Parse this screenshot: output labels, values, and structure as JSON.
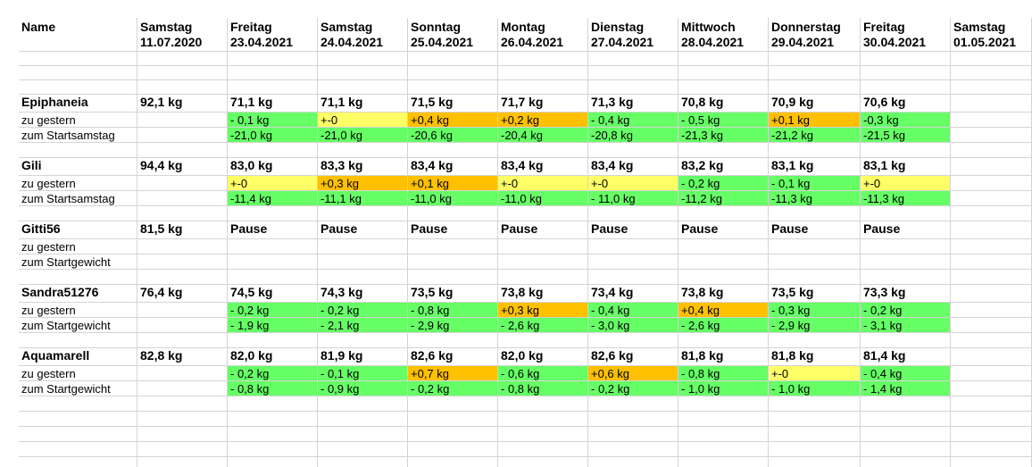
{
  "sheet": {
    "header": {
      "name_label": "Name",
      "dates": [
        {
          "day": "Samstag",
          "date": "11.07.2020"
        },
        {
          "day": "Freitag",
          "date": "23.04.2021"
        },
        {
          "day": "Samstag",
          "date": "24.04.2021"
        },
        {
          "day": "Sonntag",
          "date": "25.04.2021"
        },
        {
          "day": "Montag",
          "date": "26.04.2021"
        },
        {
          "day": "Dienstag",
          "date": "27.04.2021"
        },
        {
          "day": "Mittwoch",
          "date": "28.04.2021"
        },
        {
          "day": "Donnerstag",
          "date": "29.04.2021"
        },
        {
          "day": "Freitag",
          "date": "30.04.2021"
        },
        {
          "day": "Samstag",
          "date": "01.05.2021"
        }
      ]
    },
    "colors": {
      "green": "#66ff66",
      "yellow": "#ffff66",
      "orange": "#ffc000"
    },
    "people": [
      {
        "name": "Epiphaneia",
        "start": "92,1 kg",
        "weights": [
          "71,1 kg",
          "71,1 kg",
          "71,5 kg",
          "71,7 kg",
          "71,3 kg",
          "70,8 kg",
          "70,9 kg",
          "70,6 kg"
        ],
        "diff_label": "zu gestern",
        "diff": [
          {
            "v": "- 0,1 kg",
            "c": "green"
          },
          {
            "v": "+-0",
            "c": "yellow"
          },
          {
            "v": "+0,4 kg",
            "c": "orange"
          },
          {
            "v": "+0,2 kg",
            "c": "orange"
          },
          {
            "v": "- 0,4 kg",
            "c": "green"
          },
          {
            "v": "- 0,5 kg",
            "c": "green"
          },
          {
            "v": "+0,1 kg",
            "c": "orange"
          },
          {
            "v": "-0,3 kg",
            "c": "green"
          }
        ],
        "total_label": "zum Startsamstag",
        "total": [
          {
            "v": "-21,0 kg",
            "c": "green"
          },
          {
            "v": "-21,0 kg",
            "c": "green"
          },
          {
            "v": "-20,6 kg",
            "c": "green"
          },
          {
            "v": "-20,4 kg",
            "c": "green"
          },
          {
            "v": "-20,8 kg",
            "c": "green"
          },
          {
            "v": "-21,3 kg",
            "c": "green"
          },
          {
            "v": "-21,2 kg",
            "c": "green"
          },
          {
            "v": "-21,5 kg",
            "c": "green"
          }
        ]
      },
      {
        "name": "Gili",
        "start": "94,4 kg",
        "weights": [
          "83,0 kg",
          "83,3 kg",
          "83,4 kg",
          "83,4 kg",
          "83,4 kg",
          "83,2 kg",
          "83,1 kg",
          "83,1 kg"
        ],
        "diff_label": "zu gestern",
        "diff": [
          {
            "v": "+-0",
            "c": "yellow"
          },
          {
            "v": "+0,3 kg",
            "c": "orange"
          },
          {
            "v": "+0,1 kg",
            "c": "orange"
          },
          {
            "v": "+-0",
            "c": "yellow"
          },
          {
            "v": "+-0",
            "c": "yellow"
          },
          {
            "v": "- 0,2 kg",
            "c": "green"
          },
          {
            "v": "- 0,1 kg",
            "c": "green"
          },
          {
            "v": "+-0",
            "c": "yellow"
          }
        ],
        "total_label": "zum Startsamstag",
        "total": [
          {
            "v": "-11,4 kg",
            "c": "green"
          },
          {
            "v": "-11,1 kg",
            "c": "green"
          },
          {
            "v": "-11,0 kg",
            "c": "green"
          },
          {
            "v": "-11,0 kg",
            "c": "green"
          },
          {
            "v": "- 11,0 kg",
            "c": "green"
          },
          {
            "v": "-11,2 kg",
            "c": "green"
          },
          {
            "v": "-11,3 kg",
            "c": "green"
          },
          {
            "v": "-11,3 kg",
            "c": "green"
          }
        ]
      },
      {
        "name": "Gitti56",
        "start": "81,5 kg",
        "weights": [
          "Pause",
          "Pause",
          "Pause",
          "Pause",
          "Pause",
          "Pause",
          "Pause",
          "Pause"
        ],
        "diff_label": "zu gestern",
        "diff": [
          {
            "v": "",
            "c": ""
          },
          {
            "v": "",
            "c": ""
          },
          {
            "v": "",
            "c": ""
          },
          {
            "v": "",
            "c": ""
          },
          {
            "v": "",
            "c": ""
          },
          {
            "v": "",
            "c": ""
          },
          {
            "v": "",
            "c": ""
          },
          {
            "v": "",
            "c": ""
          }
        ],
        "total_label": "zum Startgewicht",
        "total": [
          {
            "v": "",
            "c": ""
          },
          {
            "v": "",
            "c": ""
          },
          {
            "v": "",
            "c": ""
          },
          {
            "v": "",
            "c": ""
          },
          {
            "v": "",
            "c": ""
          },
          {
            "v": "",
            "c": ""
          },
          {
            "v": "",
            "c": ""
          },
          {
            "v": "",
            "c": ""
          }
        ]
      },
      {
        "name": "Sandra51276",
        "start": "76,4 kg",
        "weights": [
          "74,5 kg",
          "74,3 kg",
          "73,5 kg",
          "73,8 kg",
          "73,4 kg",
          "73,8 kg",
          "73,5 kg",
          "73,3 kg"
        ],
        "diff_label": "zu gestern",
        "diff": [
          {
            "v": "- 0,2 kg",
            "c": "green"
          },
          {
            "v": "- 0,2 kg",
            "c": "green"
          },
          {
            "v": "- 0,8 kg",
            "c": "green"
          },
          {
            "v": "+0,3 kg",
            "c": "orange"
          },
          {
            "v": "- 0,4 kg",
            "c": "green"
          },
          {
            "v": "+0,4 kg",
            "c": "orange"
          },
          {
            "v": "- 0,3 kg",
            "c": "green"
          },
          {
            "v": "- 0,2 kg",
            "c": "green"
          }
        ],
        "total_label": "zum Startgewicht",
        "total": [
          {
            "v": "- 1,9 kg",
            "c": "green"
          },
          {
            "v": "- 2,1 kg",
            "c": "green"
          },
          {
            "v": "- 2,9 kg",
            "c": "green"
          },
          {
            "v": "- 2,6 kg",
            "c": "green"
          },
          {
            "v": "- 3,0 kg",
            "c": "green"
          },
          {
            "v": "- 2,6 kg",
            "c": "green"
          },
          {
            "v": "- 2,9 kg",
            "c": "green"
          },
          {
            "v": "- 3,1 kg",
            "c": "green"
          }
        ]
      },
      {
        "name": "Aquamarell",
        "start": "82,8 kg",
        "weights": [
          "82,0 kg",
          "81,9 kg",
          "82,6 kg",
          "82,0 kg",
          "82,6 kg",
          "81,8 kg",
          "81,8 kg",
          "81,4 kg"
        ],
        "diff_label": "zu gestern",
        "diff": [
          {
            "v": "- 0,2 kg",
            "c": "green"
          },
          {
            "v": "- 0,1 kg",
            "c": "green"
          },
          {
            "v": "+0,7 kg",
            "c": "orange"
          },
          {
            "v": "- 0,6 kg",
            "c": "green"
          },
          {
            "v": "+0,6 kg",
            "c": "orange"
          },
          {
            "v": "- 0,8 kg",
            "c": "green"
          },
          {
            "v": "+-0",
            "c": "yellow"
          },
          {
            "v": "- 0,4 kg",
            "c": "green"
          }
        ],
        "total_label": "zum Startgewicht",
        "total": [
          {
            "v": "- 0,8 kg",
            "c": "green"
          },
          {
            "v": "- 0,9 kg",
            "c": "green"
          },
          {
            "v": "- 0,2 kg",
            "c": "green"
          },
          {
            "v": "- 0,8 kg",
            "c": "green"
          },
          {
            "v": "- 0,2 kg",
            "c": "green"
          },
          {
            "v": "- 1,0 kg",
            "c": "green"
          },
          {
            "v": "- 1,0 kg",
            "c": "green"
          },
          {
            "v": "- 1,4 kg",
            "c": "green"
          }
        ]
      }
    ]
  }
}
